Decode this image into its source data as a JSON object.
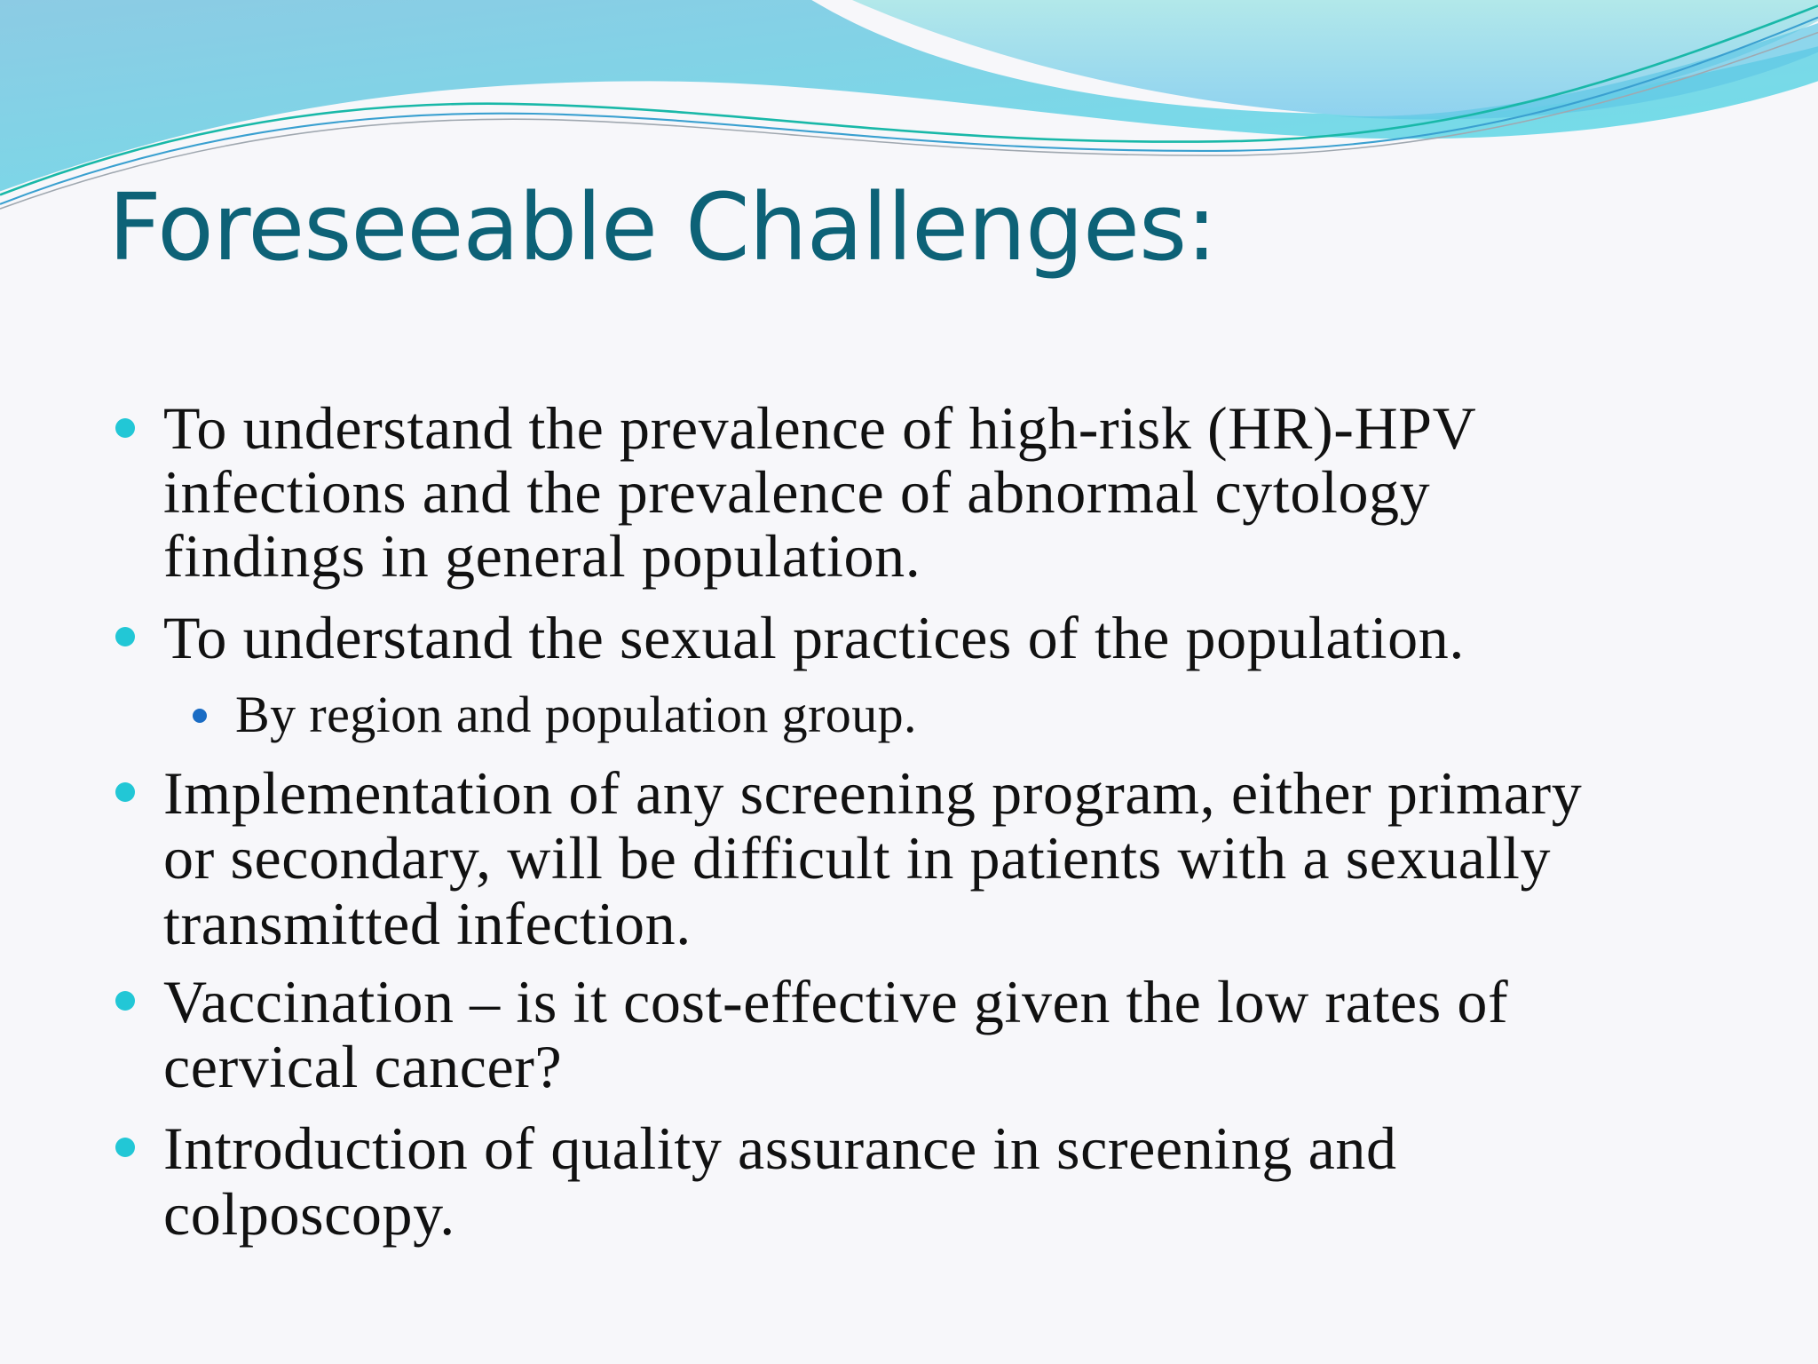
{
  "slide": {
    "title": "Foreseeable Challenges:",
    "bullets": [
      {
        "lines": [
          "To understand the prevalence of high-risk (HR)-HPV",
          "infections  and the prevalence of abnormal cytology",
          "findings in general population."
        ]
      },
      {
        "lines": [
          "To understand the sexual practices of the population."
        ],
        "sub": [
          "By region and population group."
        ]
      },
      {
        "lines": [
          "Implementation of any screening program, either primary",
          "or secondary, will be difficult in patients with a sexually",
          "transmitted infection."
        ]
      },
      {
        "lines": [
          "Vaccination – is it cost-effective given the low rates of",
          "cervical cancer?"
        ]
      },
      {
        "lines": [
          "Introduction of quality assurance in screening and",
          "colposcopy."
        ]
      }
    ],
    "colors": {
      "title": "#0d6277",
      "bullet": "#22c7d6",
      "sub_bullet": "#1a6cc4",
      "wave": "#7dd3e8"
    }
  }
}
